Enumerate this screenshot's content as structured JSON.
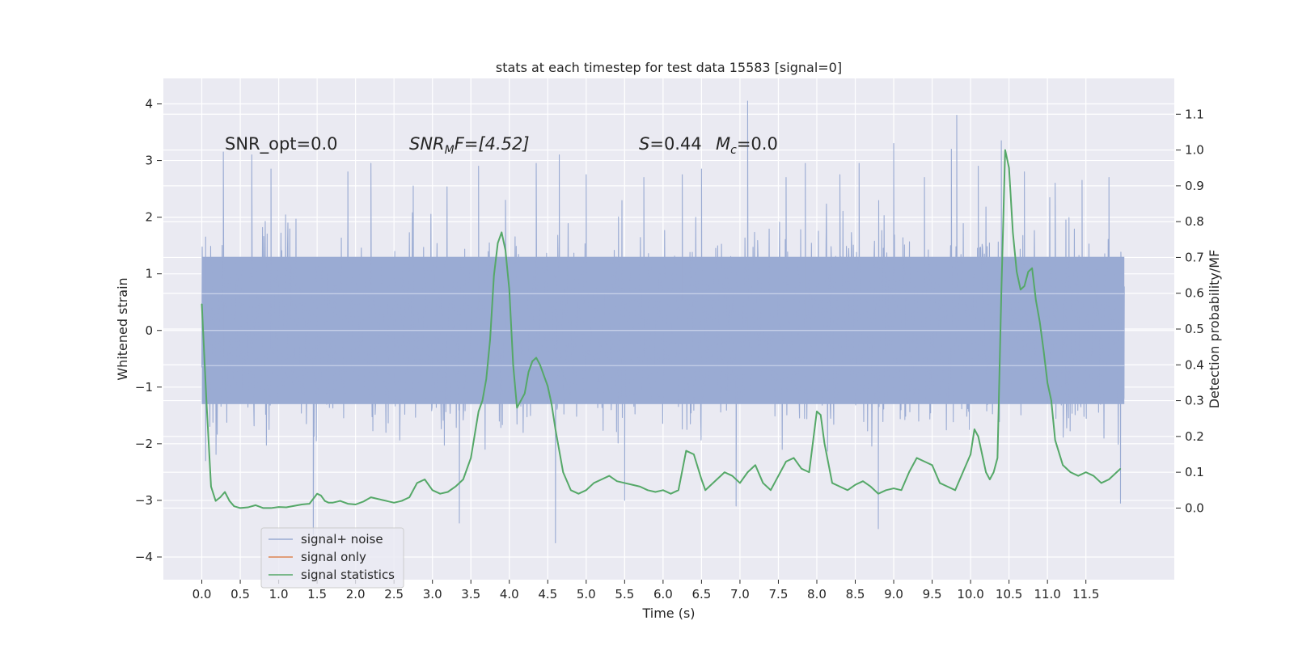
{
  "chart_data": {
    "type": "line",
    "title": "stats at each timestep for test data 15583 [signal=0]",
    "xlabel": "Time (s)",
    "ylabel": "Whitened strain",
    "ylabel_right": "Detection probability/MF",
    "xlim": [
      -0.5,
      12.65
    ],
    "ylim": [
      -4.4,
      4.45
    ],
    "ylim_right": [
      -0.2,
      1.2
    ],
    "x_ticks": [
      "0.0",
      "0.5",
      "1.0",
      "1.5",
      "2.0",
      "2.5",
      "3.0",
      "3.5",
      "4.0",
      "4.5",
      "5.0",
      "5.5",
      "6.0",
      "6.5",
      "7.0",
      "7.5",
      "8.0",
      "8.5",
      "9.0",
      "9.5",
      "10.0",
      "10.5",
      "11.0",
      "11.5"
    ],
    "y_ticks": [
      "4",
      "3",
      "2",
      "1",
      "0",
      "−1",
      "−2",
      "−3",
      "−4"
    ],
    "y_ticks_right": [
      "1.1",
      "1.0",
      "0.9",
      "0.8",
      "0.7",
      "0.6",
      "0.5",
      "0.4",
      "0.3",
      "0.2",
      "0.1",
      "0.0"
    ],
    "grid": true,
    "legend_position": "lower-left",
    "annotations": {
      "snr_opt": "SNR_opt=0.0",
      "snr_mf_main": "SNR",
      "snr_mf_sub": "M",
      "snr_mf_rest": "F=[4.52]",
      "s_main": "S",
      "s_rest": "=0.44",
      "mc_main": "M",
      "mc_sub": "c",
      "mc_rest": "=0.0"
    },
    "series": [
      {
        "name": "signal+ noise",
        "color": "#9aabd3",
        "axis": "left",
        "t_start": 0.0,
        "t_end": 12.0,
        "typical_band": [
          -1.3,
          1.3
        ],
        "peaks": [
          {
            "x": 0.05,
            "y": 1.65
          },
          {
            "x": 0.05,
            "y": -2.3
          },
          {
            "x": 0.28,
            "y": 3.15
          },
          {
            "x": 0.65,
            "y": 3.1
          },
          {
            "x": 0.9,
            "y": 2.85
          },
          {
            "x": 1.45,
            "y": -3.6
          },
          {
            "x": 1.9,
            "y": 2.8
          },
          {
            "x": 2.2,
            "y": 2.95
          },
          {
            "x": 2.75,
            "y": 2.55
          },
          {
            "x": 3.35,
            "y": -3.4
          },
          {
            "x": 3.6,
            "y": 2.9
          },
          {
            "x": 3.95,
            "y": 2.3
          },
          {
            "x": 4.35,
            "y": 2.95
          },
          {
            "x": 4.6,
            "y": -3.75
          },
          {
            "x": 4.65,
            "y": 3.1
          },
          {
            "x": 5.0,
            "y": 2.75
          },
          {
            "x": 5.5,
            "y": -3.0
          },
          {
            "x": 5.75,
            "y": 2.7
          },
          {
            "x": 6.25,
            "y": 2.75
          },
          {
            "x": 6.5,
            "y": 2.85
          },
          {
            "x": 6.95,
            "y": -3.1
          },
          {
            "x": 7.1,
            "y": 4.05
          },
          {
            "x": 7.6,
            "y": 2.7
          },
          {
            "x": 7.85,
            "y": 2.95
          },
          {
            "x": 8.3,
            "y": 2.75
          },
          {
            "x": 8.55,
            "y": 2.95
          },
          {
            "x": 8.8,
            "y": -3.5
          },
          {
            "x": 9.0,
            "y": 3.3
          },
          {
            "x": 9.4,
            "y": 2.7
          },
          {
            "x": 9.75,
            "y": 3.2
          },
          {
            "x": 9.82,
            "y": 3.8
          },
          {
            "x": 10.1,
            "y": 2.9
          },
          {
            "x": 10.4,
            "y": 3.35
          },
          {
            "x": 10.7,
            "y": 2.8
          },
          {
            "x": 11.1,
            "y": 2.6
          },
          {
            "x": 11.45,
            "y": 2.65
          },
          {
            "x": 11.8,
            "y": 2.7
          },
          {
            "x": 11.95,
            "y": -3.05
          }
        ]
      },
      {
        "name": "signal only",
        "color": "#dd8452",
        "axis": "left",
        "x": [],
        "y": []
      },
      {
        "name": "signal statistics",
        "color": "#55a868",
        "axis": "right",
        "x": [
          0.0,
          0.06,
          0.12,
          0.18,
          0.24,
          0.3,
          0.36,
          0.42,
          0.5,
          0.6,
          0.7,
          0.8,
          0.9,
          1.0,
          1.1,
          1.2,
          1.3,
          1.4,
          1.5,
          1.55,
          1.6,
          1.65,
          1.7,
          1.8,
          1.9,
          2.0,
          2.1,
          2.2,
          2.3,
          2.4,
          2.5,
          2.6,
          2.7,
          2.8,
          2.9,
          3.0,
          3.1,
          3.2,
          3.3,
          3.4,
          3.5,
          3.6,
          3.65,
          3.7,
          3.75,
          3.8,
          3.85,
          3.9,
          3.95,
          4.0,
          4.05,
          4.1,
          4.15,
          4.2,
          4.25,
          4.3,
          4.35,
          4.4,
          4.45,
          4.5,
          4.55,
          4.6,
          4.7,
          4.8,
          4.9,
          5.0,
          5.1,
          5.2,
          5.3,
          5.4,
          5.5,
          5.6,
          5.7,
          5.8,
          5.9,
          6.0,
          6.1,
          6.2,
          6.3,
          6.4,
          6.5,
          6.55,
          6.6,
          6.7,
          6.8,
          6.9,
          7.0,
          7.1,
          7.2,
          7.3,
          7.4,
          7.5,
          7.6,
          7.7,
          7.8,
          7.9,
          8.0,
          8.05,
          8.1,
          8.2,
          8.3,
          8.4,
          8.5,
          8.6,
          8.7,
          8.8,
          8.9,
          9.0,
          9.1,
          9.2,
          9.3,
          9.4,
          9.5,
          9.6,
          9.7,
          9.8,
          9.9,
          10.0,
          10.05,
          10.1,
          10.2,
          10.25,
          10.3,
          10.35,
          10.4,
          10.45,
          10.5,
          10.55,
          10.6,
          10.65,
          10.7,
          10.75,
          10.8,
          10.85,
          10.9,
          10.95,
          11.0,
          11.05,
          11.1,
          11.2,
          11.3,
          11.4,
          11.5,
          11.6,
          11.7,
          11.8,
          11.9,
          11.95
        ],
        "y": [
          0.57,
          0.3,
          0.06,
          0.02,
          0.03,
          0.045,
          0.02,
          0.005,
          0.0,
          0.002,
          0.008,
          0.0,
          0.0,
          0.003,
          0.002,
          0.006,
          0.01,
          0.012,
          0.04,
          0.035,
          0.02,
          0.015,
          0.015,
          0.02,
          0.012,
          0.01,
          0.018,
          0.03,
          0.025,
          0.02,
          0.015,
          0.02,
          0.03,
          0.07,
          0.08,
          0.05,
          0.04,
          0.045,
          0.06,
          0.08,
          0.14,
          0.27,
          0.3,
          0.36,
          0.47,
          0.65,
          0.74,
          0.77,
          0.72,
          0.61,
          0.4,
          0.28,
          0.3,
          0.32,
          0.38,
          0.41,
          0.42,
          0.4,
          0.37,
          0.34,
          0.29,
          0.22,
          0.1,
          0.05,
          0.04,
          0.05,
          0.07,
          0.08,
          0.09,
          0.075,
          0.07,
          0.065,
          0.06,
          0.05,
          0.045,
          0.05,
          0.04,
          0.05,
          0.16,
          0.15,
          0.08,
          0.05,
          0.06,
          0.08,
          0.1,
          0.09,
          0.07,
          0.1,
          0.12,
          0.07,
          0.05,
          0.09,
          0.13,
          0.14,
          0.11,
          0.1,
          0.27,
          0.26,
          0.18,
          0.07,
          0.06,
          0.05,
          0.065,
          0.075,
          0.06,
          0.04,
          0.05,
          0.055,
          0.05,
          0.1,
          0.14,
          0.13,
          0.12,
          0.07,
          0.06,
          0.05,
          0.1,
          0.15,
          0.22,
          0.2,
          0.1,
          0.08,
          0.1,
          0.14,
          0.6,
          1.0,
          0.95,
          0.77,
          0.66,
          0.61,
          0.62,
          0.66,
          0.67,
          0.58,
          0.52,
          0.44,
          0.35,
          0.3,
          0.19,
          0.12,
          0.1,
          0.09,
          0.1,
          0.09,
          0.07,
          0.08,
          0.1,
          0.11
        ]
      }
    ]
  }
}
